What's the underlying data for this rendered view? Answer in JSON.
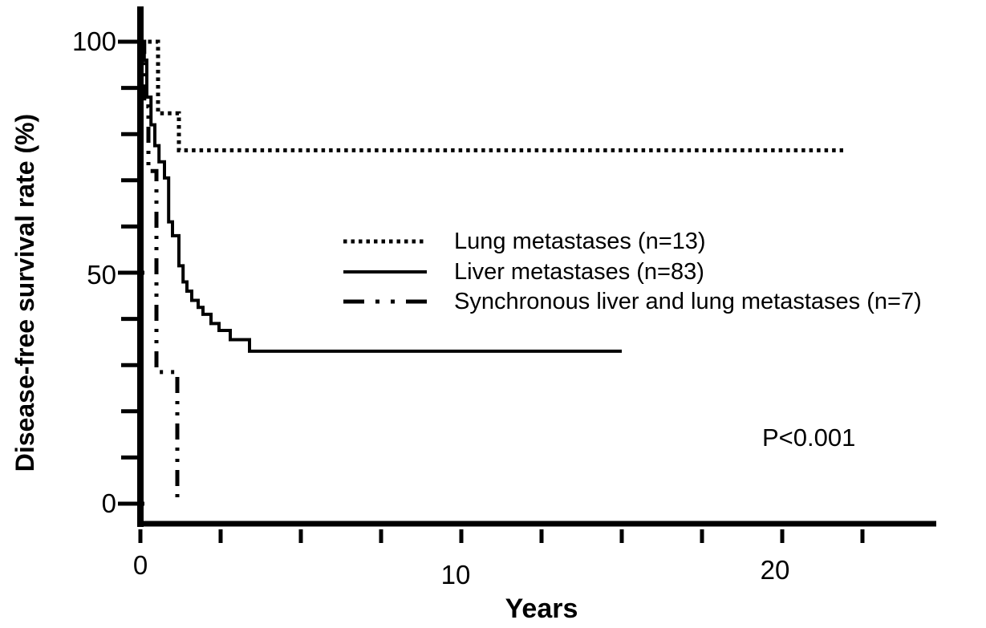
{
  "chart_data": {
    "type": "line",
    "subtype": "kaplan-meier-step-curves",
    "title": "",
    "xlabel": "Years",
    "ylabel": "Disease-free survival rate (%)",
    "xlim": [
      0,
      25
    ],
    "ylim": [
      0,
      100
    ],
    "grid": false,
    "legend_position": "center-of-plot",
    "annotation": {
      "text": "P<0.001"
    },
    "x_ticks_minor": [
      0,
      2.5,
      5,
      7.5,
      10,
      12.5,
      15,
      17.5,
      20,
      22.5
    ],
    "x_tick_labels": [
      {
        "value": 0,
        "label": "0"
      },
      {
        "value": 10,
        "label": "10"
      },
      {
        "value": 20,
        "label": "20"
      }
    ],
    "y_ticks_minor": [
      0,
      10,
      20,
      30,
      40,
      50,
      60,
      70,
      80,
      90,
      100
    ],
    "y_tick_labels": [
      {
        "value": 100,
        "label": "100"
      },
      {
        "value": 50,
        "label": "50"
      },
      {
        "value": 0,
        "label": "0"
      }
    ],
    "series": [
      {
        "name": "Lung metastases (n=13)",
        "line_style": "dotted",
        "points_years_percent": [
          [
            0,
            100
          ],
          [
            0.55,
            100
          ],
          [
            0.55,
            84.5
          ],
          [
            1.2,
            84.5
          ],
          [
            1.2,
            76.5
          ],
          [
            21.9,
            76.5
          ]
        ]
      },
      {
        "name": "Liver metastases (n=83)",
        "line_style": "solid",
        "points_years_percent": [
          [
            0,
            100
          ],
          [
            0.12,
            100
          ],
          [
            0.12,
            96
          ],
          [
            0.2,
            96
          ],
          [
            0.2,
            88
          ],
          [
            0.33,
            88
          ],
          [
            0.33,
            82
          ],
          [
            0.45,
            82
          ],
          [
            0.45,
            77.5
          ],
          [
            0.58,
            77.5
          ],
          [
            0.58,
            74
          ],
          [
            0.75,
            74
          ],
          [
            0.75,
            70.5
          ],
          [
            0.88,
            70.5
          ],
          [
            0.88,
            61
          ],
          [
            1.0,
            61
          ],
          [
            1.0,
            58
          ],
          [
            1.2,
            58
          ],
          [
            1.2,
            51.5
          ],
          [
            1.33,
            51.5
          ],
          [
            1.33,
            48
          ],
          [
            1.45,
            48
          ],
          [
            1.45,
            46
          ],
          [
            1.6,
            46
          ],
          [
            1.6,
            44
          ],
          [
            1.8,
            44
          ],
          [
            1.8,
            42.5
          ],
          [
            1.95,
            42.5
          ],
          [
            1.95,
            41
          ],
          [
            2.2,
            41
          ],
          [
            2.2,
            39
          ],
          [
            2.45,
            39
          ],
          [
            2.45,
            37.5
          ],
          [
            2.8,
            37.5
          ],
          [
            2.8,
            35.5
          ],
          [
            3.4,
            35.5
          ],
          [
            3.4,
            33
          ],
          [
            15,
            33
          ]
        ]
      },
      {
        "name": "Synchronous liver and lung metastases (n=7)",
        "line_style": "dash-dot-dot",
        "points_years_percent": [
          [
            0,
            100
          ],
          [
            0.12,
            100
          ],
          [
            0.12,
            86
          ],
          [
            0.25,
            86
          ],
          [
            0.25,
            72
          ],
          [
            0.5,
            72
          ],
          [
            0.5,
            28.5
          ],
          [
            1.15,
            28.5
          ],
          [
            1.15,
            0
          ]
        ]
      }
    ]
  }
}
